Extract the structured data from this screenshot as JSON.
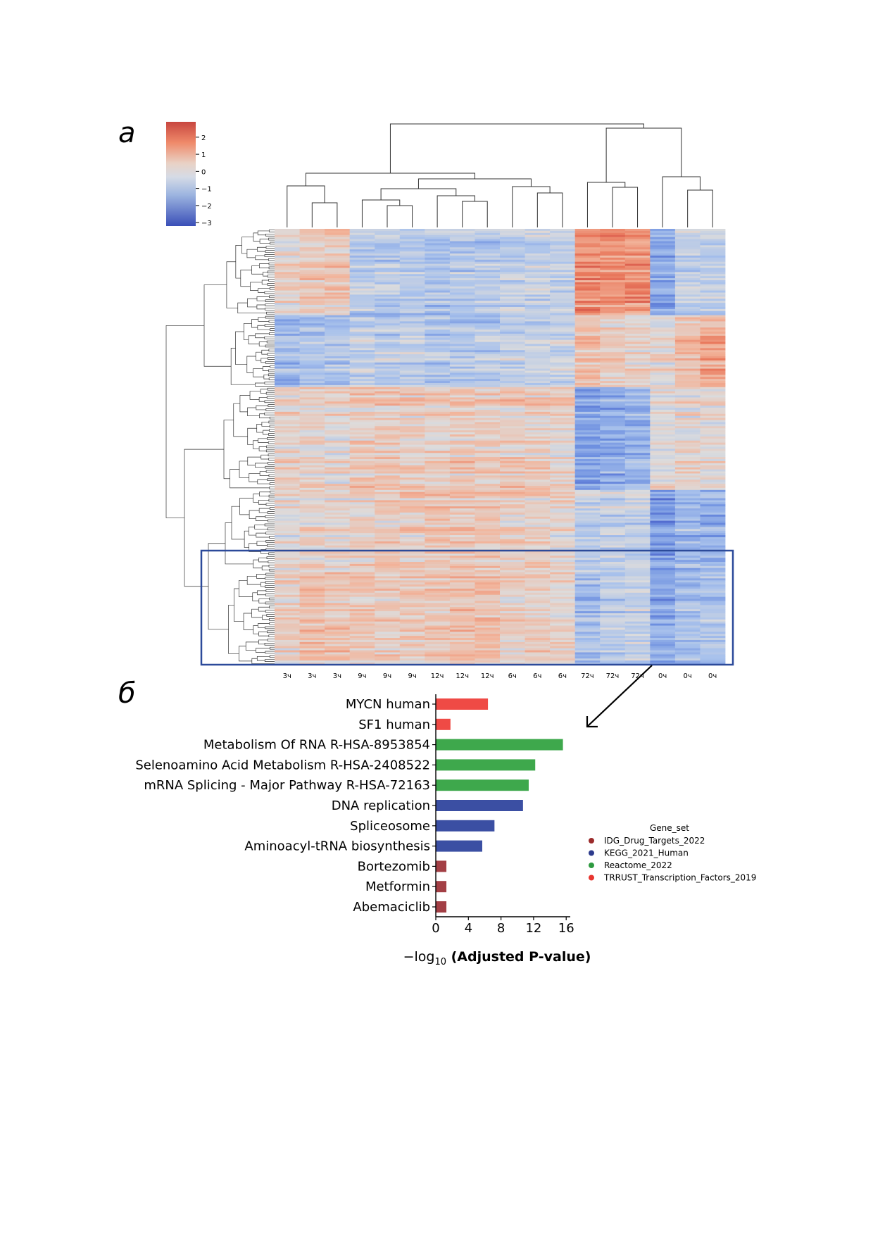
{
  "panels": {
    "a": "а",
    "b": "б"
  },
  "colorbar": {
    "ticks": [
      "2",
      "1",
      "0",
      "−1",
      "−2",
      "−3"
    ],
    "tick_values": [
      2,
      1,
      0,
      -1,
      -2,
      -3
    ],
    "range": [
      -3.2,
      2.9
    ],
    "colors": {
      "low": "#3b4cc0",
      "mid": "#dddcdc",
      "high": "#d0453e"
    }
  },
  "chart_data": [
    {
      "type": "heatmap",
      "title": "",
      "columns": [
        "3ч",
        "3ч",
        "3ч",
        "9ч",
        "9ч",
        "9ч",
        "12ч",
        "12ч",
        "12ч",
        "6ч",
        "6ч",
        "6ч",
        "72ч",
        "72ч",
        "72ч",
        "0ч",
        "0ч",
        "0ч"
      ],
      "clusters": [
        {
          "name": "",
          "col_means": [
            0.2,
            0.5,
            0.5,
            -0.7,
            -0.7,
            -0.7,
            -0.9,
            -0.8,
            -0.7,
            -0.5,
            -0.5,
            -0.6,
            1.6,
            1.5,
            1.5,
            -1.5,
            -0.6,
            -0.6
          ]
        },
        {
          "name": "",
          "col_means": [
            -1.0,
            -0.9,
            -0.8,
            -0.5,
            -0.6,
            -0.5,
            -0.7,
            -0.8,
            -0.7,
            -0.5,
            -0.4,
            -0.4,
            0.8,
            0.5,
            0.3,
            0.2,
            0.8,
            1.3
          ]
        },
        {
          "name": "",
          "col_means": [
            0.3,
            0.3,
            0.2,
            0.5,
            0.5,
            0.4,
            0.4,
            0.5,
            0.5,
            0.5,
            0.4,
            0.3,
            -1.6,
            -1.4,
            -1.3,
            0.0,
            0.2,
            0.1
          ]
        },
        {
          "name": "",
          "col_means": [
            0.1,
            0.2,
            0.1,
            0.3,
            0.4,
            0.4,
            0.6,
            0.5,
            0.5,
            0.4,
            0.3,
            0.2,
            -0.6,
            -0.5,
            -0.5,
            -1.8,
            -1.2,
            -1.3
          ]
        },
        {
          "name": "",
          "col_means": [
            0.2,
            0.6,
            0.5,
            0.5,
            0.4,
            0.4,
            0.5,
            0.6,
            0.6,
            0.3,
            0.3,
            0.2,
            -1.1,
            -0.8,
            -0.6,
            -1.6,
            -1.1,
            -0.9
          ]
        }
      ],
      "highlighted_cluster": 4
    },
    {
      "type": "bar",
      "orientation": "horizontal",
      "categories": [
        "MYCN human",
        "SF1 human",
        "Metabolism Of RNA R-HSA-8953854",
        "Selenoamino Acid Metabolism R-HSA-2408522",
        "mRNA Splicing - Major Pathway R-HSA-72163",
        "DNA replication",
        "Spliceosome",
        "Aminoacyl-tRNA biosynthesis",
        "Bortezomib",
        "Metformin",
        "Abemaciclib"
      ],
      "values": [
        6.4,
        1.8,
        15.6,
        12.2,
        11.4,
        10.7,
        7.2,
        5.7,
        1.3,
        1.3,
        1.3
      ],
      "groups": [
        "TRRUST_Transcription_Factors_2019",
        "TRRUST_Transcription_Factors_2019",
        "Reactome_2022",
        "Reactome_2022",
        "Reactome_2022",
        "KEGG_2021_Human",
        "KEGG_2021_Human",
        "KEGG_2021_Human",
        "IDG_Drug_Targets_2022",
        "IDG_Drug_Targets_2022",
        "IDG_Drug_Targets_2022"
      ],
      "xlabel_prefix": "−log",
      "xlabel_sub": "10",
      "xlabel_main": " (Adjusted P-value)",
      "xlim": [
        0,
        16.5
      ],
      "xticks": [
        "0",
        "4",
        "8",
        "12",
        "16"
      ],
      "xtick_values": [
        0,
        4,
        8,
        12,
        16
      ],
      "legend": {
        "title": "Gene_set",
        "position": "right",
        "entries": [
          {
            "name": "IDG_Drug_Targets_2022",
            "color": "#9b2a2a"
          },
          {
            "name": "KEGG_2021_Human",
            "color": "#2c3a8c"
          },
          {
            "name": "Reactome_2022",
            "color": "#2e9a40"
          },
          {
            "name": "TRRUST_Transcription_Factors_2019",
            "color": "#e8352f"
          }
        ]
      },
      "bar_colors": {
        "IDG_Drug_Targets_2022": "#a33f45",
        "KEGG_2021_Human": "#3b4fa3",
        "Reactome_2022": "#3ea84c",
        "TRRUST_Transcription_Factors_2019": "#ef4a45"
      }
    }
  ]
}
